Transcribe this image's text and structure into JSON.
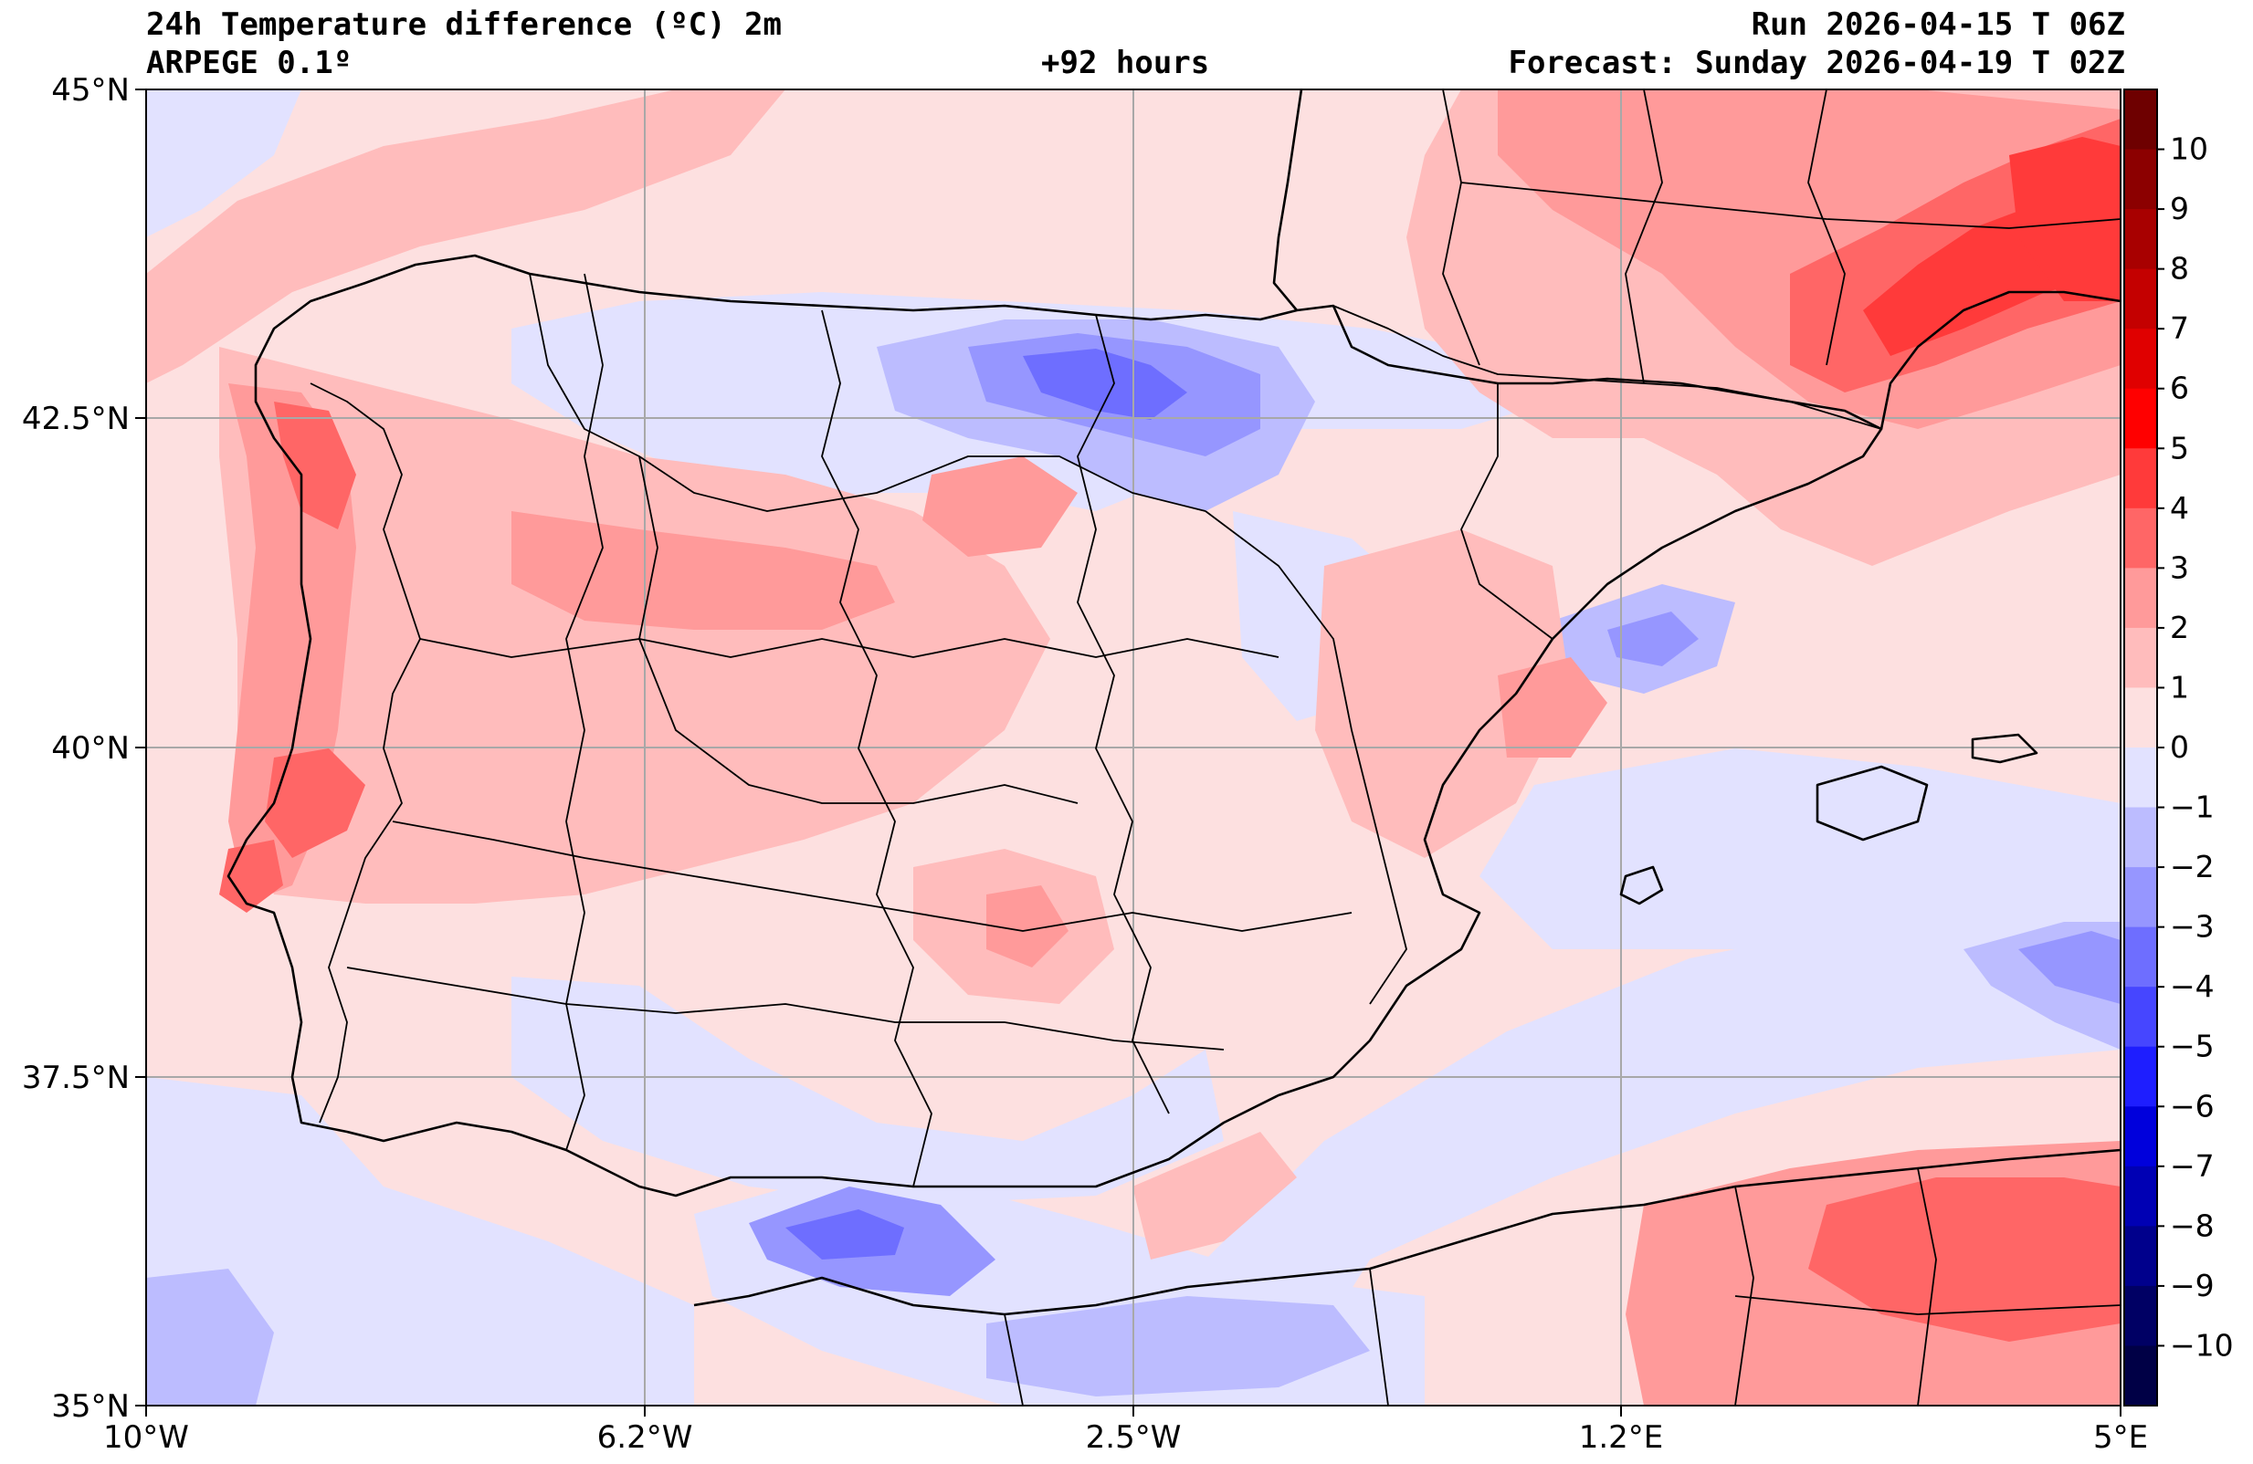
{
  "header": {
    "title": "24h Temperature difference (ºC) 2m",
    "model": "ARPEGE 0.1º",
    "lead": "+92 hours",
    "run": "Run 2026-04-15 T 06Z",
    "valid": "Forecast: Sunday 2026-04-19 T 02Z"
  },
  "axes": {
    "lon_ticks": [
      "10°W",
      "6.2°W",
      "2.5°W",
      "1.2°E",
      "5°E"
    ],
    "lat_ticks": [
      "45°N",
      "42.5°N",
      "40°N",
      "37.5°N",
      "35°N"
    ]
  },
  "map": {
    "extent": {
      "lon": [
        -10,
        5
      ],
      "lat": [
        35,
        45
      ]
    },
    "variable": "2m temperature 24h difference",
    "units": "ºC",
    "gridlines": true,
    "background_color": "#fde0e0"
  },
  "colorbar": {
    "ticks": [
      "10",
      "9",
      "8",
      "7",
      "6",
      "5",
      "4",
      "3",
      "2",
      "1",
      "0",
      "−1",
      "−2",
      "−3",
      "−4",
      "−5",
      "−6",
      "−7",
      "−8",
      "−9",
      "−10"
    ],
    "colors": [
      "#6e0000",
      "#8c0000",
      "#a80000",
      "#c40000",
      "#e00000",
      "#ff0000",
      "#ff3a3a",
      "#ff6666",
      "#ff9a9a",
      "#ffbcbc",
      "#fde0e0",
      "#e2e2ff",
      "#bcbcff",
      "#9696ff",
      "#6e6eff",
      "#4646ff",
      "#1e1eff",
      "#0000dc",
      "#0000b4",
      "#00008c",
      "#000064",
      "#000046"
    ]
  }
}
